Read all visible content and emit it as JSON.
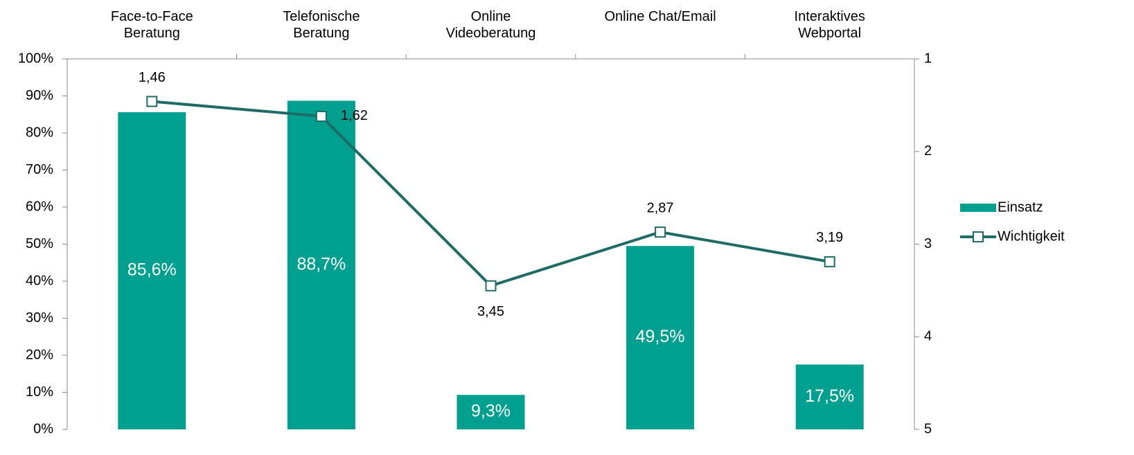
{
  "chart_data": {
    "type": "bar_line",
    "categories": [
      "Face-to-Face\nBeratung",
      "Telefonische\nBeratung",
      "Online\nVideoberatung",
      "Online Chat/Email",
      "Interaktives\nWebportal"
    ],
    "series": [
      {
        "name": "Einsatz",
        "type": "bar",
        "color": "#00a091",
        "values": [
          85.6,
          88.7,
          9.3,
          49.5,
          17.5
        ],
        "value_labels": [
          "85,6%",
          "88,7%",
          "9,3%",
          "49,5%",
          "17,5%"
        ]
      },
      {
        "name": "Wichtigkeit",
        "type": "line",
        "axis": "y2",
        "color": "#1f6b66",
        "values": [
          1.46,
          1.62,
          3.45,
          2.87,
          3.19
        ],
        "value_labels": [
          "1,46",
          "1,62",
          "3,45",
          "2,87",
          "3,19"
        ]
      }
    ],
    "ylim": [
      0,
      100
    ],
    "yticks": [
      {
        "value": 0,
        "label": "0%"
      },
      {
        "value": 10,
        "label": "10%"
      },
      {
        "value": 20,
        "label": "20%"
      },
      {
        "value": 30,
        "label": "30%"
      },
      {
        "value": 40,
        "label": "40%"
      },
      {
        "value": 50,
        "label": "50%"
      },
      {
        "value": 60,
        "label": "60%"
      },
      {
        "value": 70,
        "label": "70%"
      },
      {
        "value": 80,
        "label": "80%"
      },
      {
        "value": 90,
        "label": "90%"
      },
      {
        "value": 100,
        "label": "100%"
      }
    ],
    "y2lim": [
      5,
      1
    ],
    "y2ticks": [
      1,
      2,
      3,
      4,
      5
    ],
    "grid": false,
    "legend": "right"
  }
}
